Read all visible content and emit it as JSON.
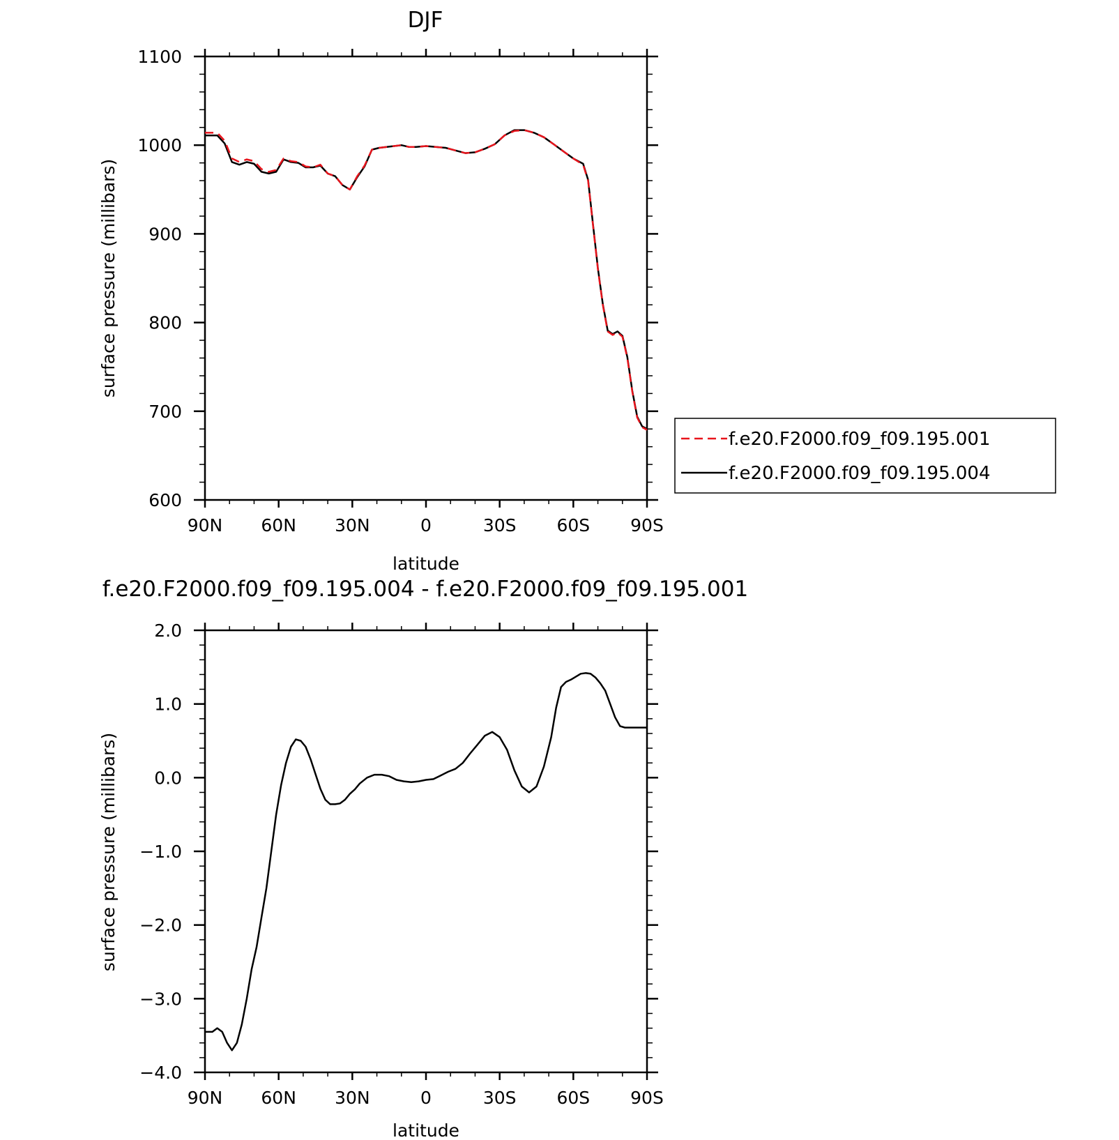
{
  "colors": {
    "series_001": "#e8141c",
    "series_004": "#000000",
    "axes": "#000000"
  },
  "chart_data": [
    {
      "type": "line",
      "title": "DJF",
      "xlabel": "latitude",
      "ylabel": "surface pressure (millibars)",
      "xlim": [
        90,
        -90
      ],
      "ylim": [
        600,
        1100
      ],
      "x_ticks": [
        90,
        60,
        30,
        0,
        -30,
        -60,
        -90
      ],
      "x_tick_labels": [
        "90N",
        "60N",
        "30N",
        "0",
        "30S",
        "60S",
        "90S"
      ],
      "y_ticks": [
        600,
        700,
        800,
        900,
        1000,
        1100
      ],
      "y_tick_labels": [
        "600",
        "700",
        "800",
        "900",
        "1000",
        "1100"
      ],
      "legend": {
        "placement": "right",
        "entries": [
          "f.e20.F2000.f09_f09.195.001",
          "f.e20.F2000.f09_f09.195.004"
        ]
      },
      "x": [
        90,
        85,
        82,
        79,
        76,
        73,
        70,
        67,
        64,
        61,
        58,
        55,
        52,
        49,
        46,
        43,
        40,
        37,
        34,
        31,
        28,
        25,
        22,
        19,
        16,
        13,
        10,
        7,
        4,
        0,
        -4,
        -8,
        -12,
        -16,
        -20,
        -24,
        -28,
        -32,
        -36,
        -40,
        -44,
        -48,
        -52,
        -56,
        -60,
        -64,
        -66,
        -68,
        -70,
        -72,
        -74,
        -76,
        -78,
        -80,
        -82,
        -84,
        -86,
        -88,
        -90
      ],
      "series": [
        {
          "name": "f.e20.F2000.f09_f09.195.001",
          "style": "dashed",
          "color_key": "series_001",
          "values": [
            1014,
            1014,
            1005,
            985,
            981,
            984,
            982,
            973,
            970,
            972,
            985,
            982,
            981,
            976,
            975,
            978,
            968,
            965,
            955,
            950,
            965,
            977,
            995,
            997,
            998,
            999,
            1000,
            998,
            998,
            999,
            998,
            997,
            994,
            991,
            992,
            996,
            1001,
            1011,
            1016,
            1017,
            1014,
            1009,
            1001,
            993,
            985,
            978,
            960,
            910,
            860,
            820,
            790,
            786,
            789,
            784,
            760,
            722,
            693,
            682,
            679
          ]
        },
        {
          "name": "f.e20.F2000.f09_f09.195.004",
          "style": "solid",
          "color_key": "series_004",
          "values": [
            1011,
            1011,
            1002,
            981,
            978,
            981,
            979,
            970,
            968,
            970,
            984,
            981,
            980,
            975,
            975,
            977,
            968,
            965,
            955,
            950,
            964,
            976,
            995,
            997,
            998,
            999,
            1000,
            998,
            998,
            999,
            998,
            997,
            994,
            991,
            992,
            996,
            1001,
            1011,
            1017,
            1017,
            1014,
            1009,
            1001,
            993,
            985,
            979,
            961,
            911,
            861,
            821,
            791,
            787,
            790,
            785,
            761,
            723,
            694,
            683,
            680
          ]
        }
      ]
    },
    {
      "type": "line",
      "title": "f.e20.F2000.f09_f09.195.004 - f.e20.F2000.f09_f09.195.001",
      "xlabel": "latitude",
      "ylabel": "surface pressure (millibars)",
      "xlim": [
        90,
        -90
      ],
      "ylim": [
        -4.0,
        2.0
      ],
      "x_ticks": [
        90,
        60,
        30,
        0,
        -30,
        -60,
        -90
      ],
      "x_tick_labels": [
        "90N",
        "60N",
        "30N",
        "0",
        "30S",
        "60S",
        "90S"
      ],
      "y_ticks": [
        -4.0,
        -3.0,
        -2.0,
        -1.0,
        0.0,
        1.0,
        2.0
      ],
      "y_tick_labels": [
        "−4.0",
        "−3.0",
        "−2.0",
        "−1.0",
        "0.0",
        "1.0",
        "2.0"
      ],
      "x": [
        90,
        87,
        85,
        83,
        81,
        79,
        77,
        75,
        73,
        71,
        69,
        67,
        65,
        63,
        61,
        59,
        57,
        55,
        53,
        51,
        49,
        47,
        45,
        43,
        41,
        39,
        37,
        35,
        33,
        31,
        29,
        27,
        24,
        21,
        18,
        15,
        12,
        9,
        6,
        3,
        0,
        -3,
        -6,
        -9,
        -12,
        -15,
        -18,
        -21,
        -24,
        -27,
        -30,
        -33,
        -36,
        -39,
        -42,
        -45,
        -48,
        -51,
        -53,
        -55,
        -57,
        -59,
        -61,
        -63,
        -65,
        -67,
        -69,
        -71,
        -73,
        -75,
        -77,
        -79,
        -81,
        -83,
        -85,
        -87,
        -89,
        -90
      ],
      "series": [
        {
          "name": "",
          "style": "solid",
          "color_key": "series_004",
          "values": [
            -3.45,
            -3.45,
            -3.4,
            -3.45,
            -3.6,
            -3.7,
            -3.6,
            -3.35,
            -3.0,
            -2.6,
            -2.3,
            -1.9,
            -1.5,
            -1.0,
            -0.5,
            -0.1,
            0.2,
            0.42,
            0.52,
            0.5,
            0.42,
            0.25,
            0.05,
            -0.15,
            -0.3,
            -0.36,
            -0.36,
            -0.35,
            -0.3,
            -0.22,
            -0.16,
            -0.08,
            0.0,
            0.04,
            0.04,
            0.02,
            -0.03,
            -0.05,
            -0.06,
            -0.05,
            -0.03,
            -0.02,
            0.03,
            0.08,
            0.12,
            0.2,
            0.33,
            0.45,
            0.57,
            0.62,
            0.55,
            0.38,
            0.1,
            -0.12,
            -0.2,
            -0.12,
            0.15,
            0.55,
            0.95,
            1.23,
            1.3,
            1.33,
            1.37,
            1.41,
            1.42,
            1.41,
            1.36,
            1.28,
            1.18,
            1.0,
            0.82,
            0.7,
            0.68,
            0.68,
            0.68,
            0.68,
            0.68,
            0.68
          ]
        }
      ]
    }
  ]
}
